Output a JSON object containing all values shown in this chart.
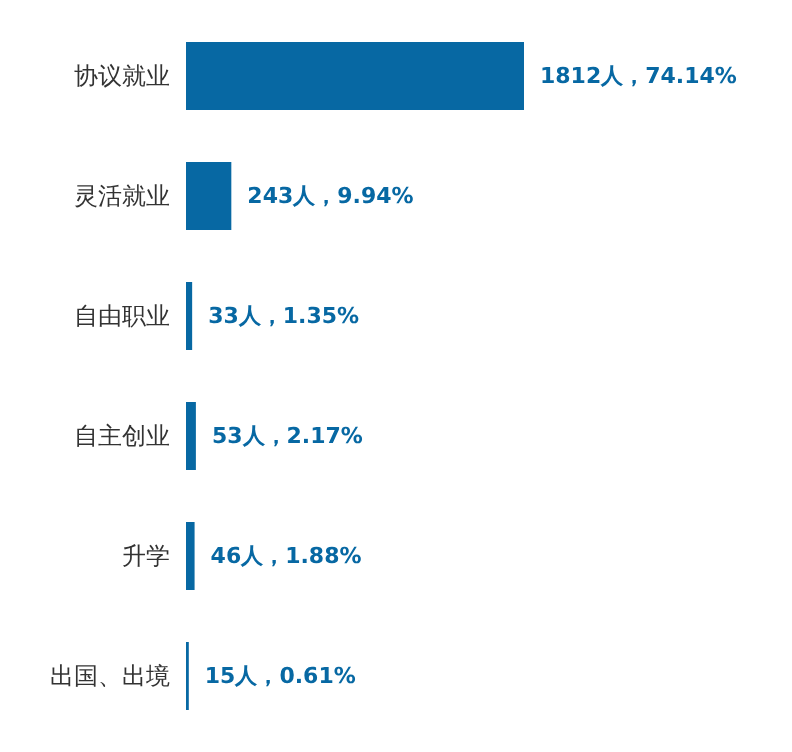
{
  "chart_data": {
    "type": "bar",
    "orientation": "horizontal",
    "categories": [
      "协议就业",
      "灵活就业",
      "自由职业",
      "自主创业",
      "升学",
      "出国、出境"
    ],
    "values": [
      1812,
      243,
      33,
      53,
      46,
      15
    ],
    "value_labels": [
      "1812人，74.14%",
      "243人，9.94%",
      "33人，1.35%",
      "53人，2.17%",
      "46人，1.88%",
      "15人，0.61%"
    ],
    "color": "#0768a3"
  }
}
